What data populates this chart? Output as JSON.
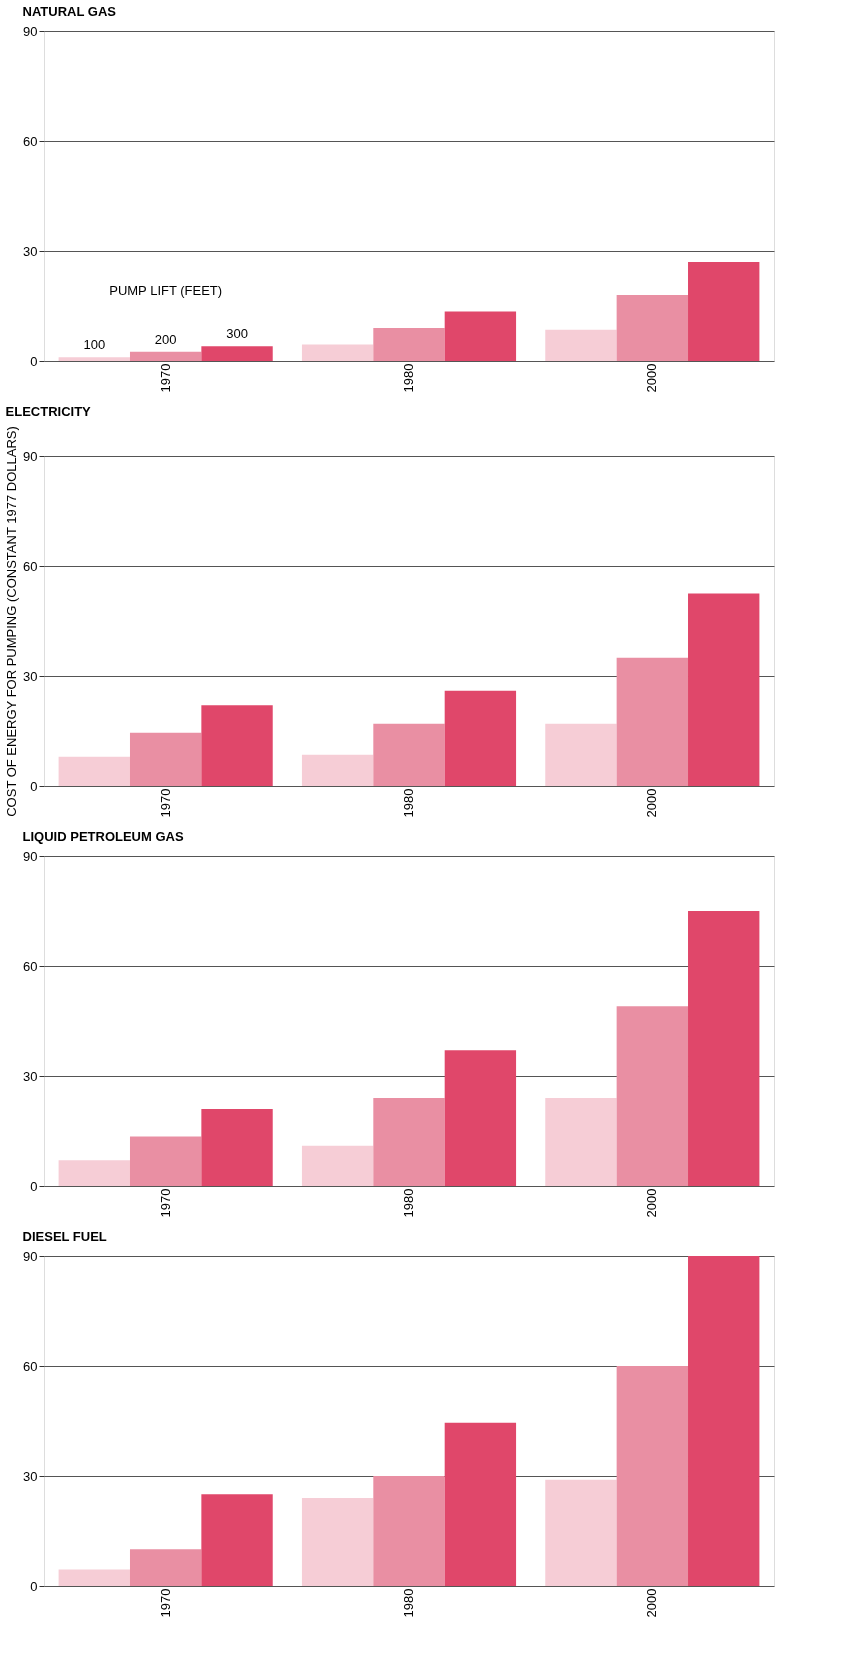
{
  "chart_data": [
    {
      "type": "bar",
      "title": "NATURAL GAS",
      "legend_title": "PUMP LIFT (FEET)",
      "categories": [
        "1970",
        "1980",
        "2000"
      ],
      "ylim": [
        0,
        90
      ],
      "yticks": [
        0,
        30,
        60,
        90
      ],
      "grid": "y",
      "series": [
        {
          "name": "100",
          "color": "#f6cdd6",
          "values": [
            1,
            4.5,
            8.5
          ]
        },
        {
          "name": "200",
          "color": "#e98fa3",
          "values": [
            2.5,
            9,
            18
          ]
        },
        {
          "name": "300",
          "color": "#e0476a",
          "values": [
            4,
            13.5,
            27
          ]
        }
      ]
    },
    {
      "type": "bar",
      "title": "ELECTRICITY",
      "ylabel": "COST OF ENERGY FOR PUMPING (CONSTANT 1977 DOLLARS)",
      "categories": [
        "1970",
        "1980",
        "2000"
      ],
      "ylim": [
        0,
        90
      ],
      "yticks": [
        0,
        30,
        60,
        90
      ],
      "grid": "y",
      "series": [
        {
          "color": "#f6cdd6",
          "values": [
            8,
            8.5,
            17
          ]
        },
        {
          "color": "#e98fa3",
          "values": [
            14.5,
            17,
            35
          ]
        },
        {
          "color": "#e0476a",
          "values": [
            22,
            26,
            52.5
          ]
        }
      ]
    },
    {
      "type": "bar",
      "title": "LIQUID PETROLEUM GAS",
      "categories": [
        "1970",
        "1980",
        "2000"
      ],
      "ylim": [
        0,
        90
      ],
      "yticks": [
        0,
        30,
        60,
        90
      ],
      "grid": "y",
      "series": [
        {
          "color": "#f6cdd6",
          "values": [
            7,
            11,
            24
          ]
        },
        {
          "color": "#e98fa3",
          "values": [
            13.5,
            24,
            49
          ]
        },
        {
          "color": "#e0476a",
          "values": [
            21,
            37,
            75
          ]
        }
      ]
    },
    {
      "type": "bar",
      "title": "DIESEL FUEL",
      "categories": [
        "1970",
        "1980",
        "2000"
      ],
      "ylim": [
        0,
        90
      ],
      "yticks": [
        0,
        30,
        60,
        90
      ],
      "grid": "y",
      "series": [
        {
          "color": "#f6cdd6",
          "values": [
            4.5,
            24,
            29
          ]
        },
        {
          "color": "#e98fa3",
          "values": [
            10,
            30,
            60
          ]
        },
        {
          "color": "#e0476a",
          "values": [
            25,
            44.5,
            90
          ]
        }
      ]
    }
  ]
}
